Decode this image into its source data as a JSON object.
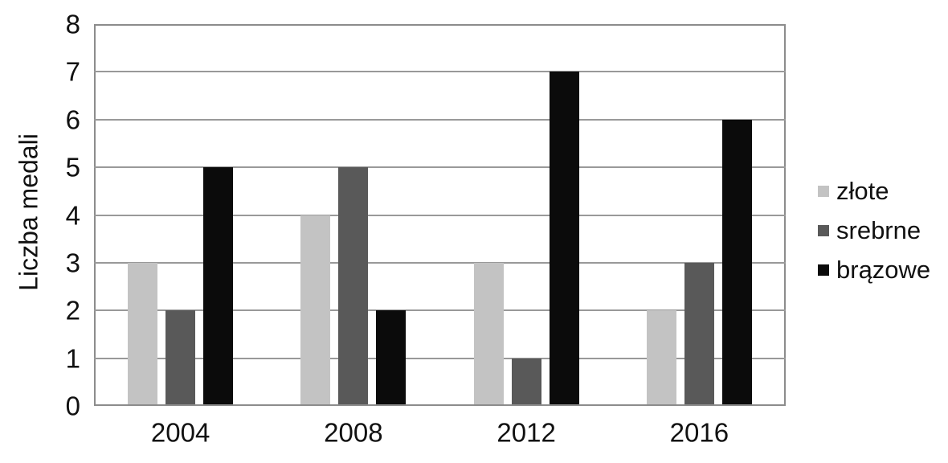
{
  "chart_data": {
    "type": "bar",
    "title": "",
    "categories": [
      "2004",
      "2008",
      "2012",
      "2016"
    ],
    "series": [
      {
        "name": "złote",
        "color": "#c3c3c3",
        "values": [
          3,
          4,
          3,
          2
        ]
      },
      {
        "name": "srebrne",
        "color": "#595959",
        "values": [
          2,
          5,
          1,
          3
        ]
      },
      {
        "name": "brązowe",
        "color": "#0b0b0b",
        "values": [
          5,
          2,
          7,
          6
        ]
      }
    ],
    "xlabel": "",
    "ylabel": "Liczba medali",
    "ylim": [
      0,
      8
    ],
    "ytick_step": 1,
    "yticks": [
      "0",
      "1",
      "2",
      "3",
      "4",
      "5",
      "6",
      "7",
      "8"
    ],
    "grid": true,
    "grid_color": "#999999",
    "border_color": "#8c8c8c",
    "background_color": "#ffffff",
    "text_color": "#111111",
    "legend_position": "right"
  }
}
